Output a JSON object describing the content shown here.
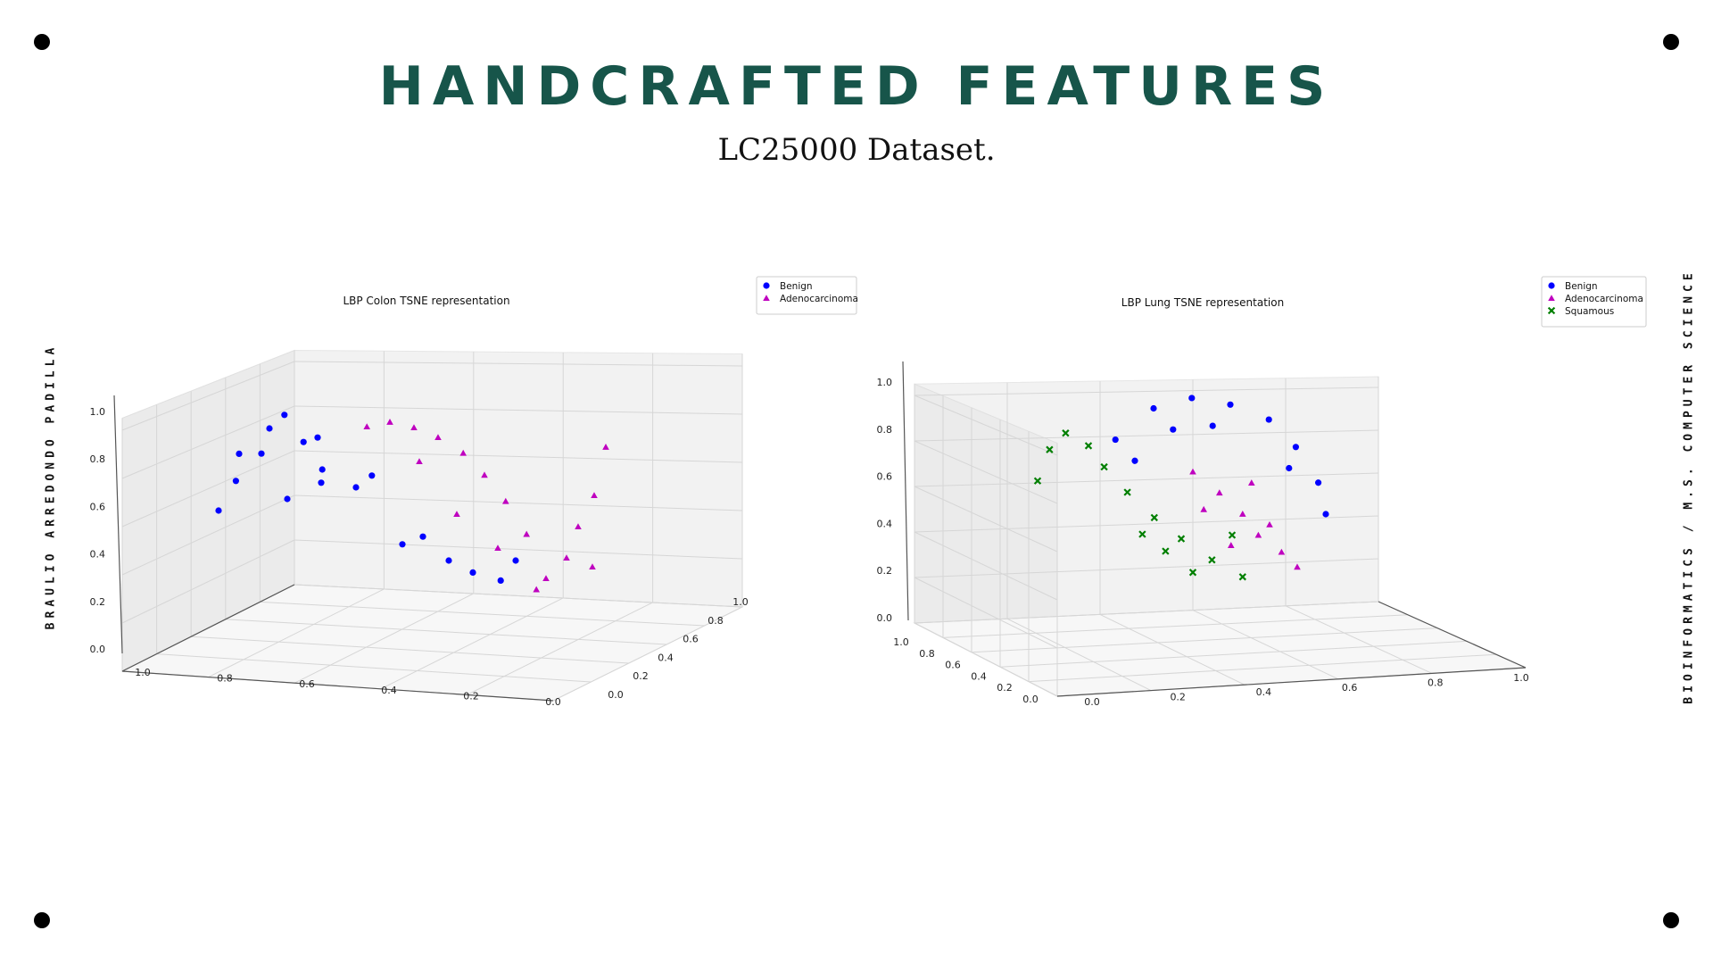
{
  "slide": {
    "title": "HANDCRAFTED FEATURES",
    "subtitle": "LC25000 Dataset.",
    "left_label": "BRAULIO ARREDONDO PADILLA",
    "right_label": "BIOINFORMATICS / M.S. COMPUTER SCIENCE"
  },
  "chart_data": [
    {
      "type": "scatter",
      "projection": "3d",
      "title": "LBP Colon TSNE representation",
      "x_ticks": [
        "0.0",
        "0.2",
        "0.4",
        "0.6",
        "0.8",
        "1.0"
      ],
      "y_ticks": [
        "0.0",
        "0.2",
        "0.4",
        "0.6",
        "0.8",
        "1.0"
      ],
      "z_ticks": [
        "0.0",
        "0.2",
        "0.4",
        "0.6",
        "0.8",
        "1.0"
      ],
      "xlim": [
        0,
        1
      ],
      "ylim": [
        0,
        1
      ],
      "zlim": [
        0,
        1
      ],
      "grid": true,
      "legend_position": "top-right",
      "series": [
        {
          "name": "Benign",
          "color": "#0000ff",
          "marker": "circle",
          "points": [
            [
              0.22,
              0.78,
              0.92
            ],
            [
              0.18,
              0.7,
              0.85
            ],
            [
              0.25,
              0.62,
              0.78
            ],
            [
              0.15,
              0.55,
              0.72
            ],
            [
              0.3,
              0.72,
              0.66
            ],
            [
              0.1,
              0.64,
              0.6
            ],
            [
              0.28,
              0.5,
              0.58
            ],
            [
              0.2,
              0.45,
              0.5
            ],
            [
              0.35,
              0.4,
              0.55
            ],
            [
              0.12,
              0.8,
              0.74
            ],
            [
              0.4,
              0.58,
              0.62
            ],
            [
              0.05,
              0.5,
              0.45
            ],
            [
              0.45,
              0.35,
              0.28
            ],
            [
              0.55,
              0.3,
              0.2
            ],
            [
              0.6,
              0.25,
              0.14
            ],
            [
              0.66,
              0.22,
              0.1
            ],
            [
              0.5,
              0.4,
              0.32
            ],
            [
              0.7,
              0.3,
              0.2
            ],
            [
              0.3,
              0.85,
              0.82
            ]
          ]
        },
        {
          "name": "Adenocarcinoma",
          "color": "#bf00bf",
          "marker": "triangle",
          "points": [
            [
              0.95,
              0.9,
              0.78
            ],
            [
              0.92,
              0.85,
              0.55
            ],
            [
              0.88,
              0.8,
              0.4
            ],
            [
              0.85,
              0.75,
              0.25
            ],
            [
              0.8,
              0.7,
              0.15
            ],
            [
              0.9,
              0.65,
              0.2
            ],
            [
              0.75,
              0.62,
              0.35
            ],
            [
              0.7,
              0.58,
              0.5
            ],
            [
              0.65,
              0.55,
              0.62
            ],
            [
              0.6,
              0.52,
              0.72
            ],
            [
              0.55,
              0.6,
              0.8
            ],
            [
              0.5,
              0.65,
              0.85
            ],
            [
              0.45,
              0.7,
              0.88
            ],
            [
              0.4,
              0.72,
              0.86
            ],
            [
              0.7,
              0.8,
              0.3
            ],
            [
              0.78,
              0.72,
              0.1
            ],
            [
              0.6,
              0.7,
              0.45
            ],
            [
              0.52,
              0.75,
              0.7
            ]
          ]
        }
      ]
    },
    {
      "type": "scatter",
      "projection": "3d",
      "title": "LBP Lung TSNE representation",
      "x_ticks": [
        "0.0",
        "0.2",
        "0.4",
        "0.6",
        "0.8",
        "1.0"
      ],
      "y_ticks": [
        "0.0",
        "0.2",
        "0.4",
        "0.6",
        "0.8",
        "1.0"
      ],
      "z_ticks": [
        "0.0",
        "0.2",
        "0.4",
        "0.6",
        "0.8",
        "1.0"
      ],
      "xlim": [
        0,
        1
      ],
      "ylim": [
        0,
        1
      ],
      "zlim": [
        0,
        1
      ],
      "grid": true,
      "legend_position": "top-right",
      "series": [
        {
          "name": "Benign",
          "color": "#0000ff",
          "marker": "circle",
          "points": [
            [
              0.35,
              0.4,
              0.9
            ],
            [
              0.45,
              0.42,
              0.95
            ],
            [
              0.55,
              0.45,
              0.92
            ],
            [
              0.65,
              0.48,
              0.85
            ],
            [
              0.72,
              0.5,
              0.72
            ],
            [
              0.78,
              0.5,
              0.55
            ],
            [
              0.8,
              0.5,
              0.4
            ],
            [
              0.25,
              0.38,
              0.75
            ],
            [
              0.3,
              0.4,
              0.65
            ],
            [
              0.5,
              0.48,
              0.82
            ],
            [
              0.7,
              0.52,
              0.62
            ],
            [
              0.4,
              0.42,
              0.8
            ]
          ]
        },
        {
          "name": "Adenocarcinoma",
          "color": "#bf00bf",
          "marker": "triangle",
          "points": [
            [
              0.45,
              0.45,
              0.6
            ],
            [
              0.52,
              0.46,
              0.5
            ],
            [
              0.58,
              0.48,
              0.4
            ],
            [
              0.62,
              0.5,
              0.3
            ],
            [
              0.68,
              0.52,
              0.22
            ],
            [
              0.72,
              0.54,
              0.15
            ],
            [
              0.55,
              0.47,
              0.25
            ],
            [
              0.65,
              0.5,
              0.35
            ],
            [
              0.48,
              0.44,
              0.42
            ],
            [
              0.6,
              0.52,
              0.55
            ]
          ]
        },
        {
          "name": "Squamous",
          "color": "#007f00",
          "marker": "x",
          "points": [
            [
              0.05,
              0.3,
              0.55
            ],
            [
              0.08,
              0.32,
              0.7
            ],
            [
              0.12,
              0.35,
              0.78
            ],
            [
              0.18,
              0.36,
              0.72
            ],
            [
              0.22,
              0.38,
              0.62
            ],
            [
              0.28,
              0.4,
              0.5
            ],
            [
              0.35,
              0.42,
              0.38
            ],
            [
              0.42,
              0.44,
              0.28
            ],
            [
              0.5,
              0.46,
              0.18
            ],
            [
              0.58,
              0.48,
              0.1
            ],
            [
              0.45,
              0.45,
              0.12
            ],
            [
              0.38,
              0.42,
              0.22
            ],
            [
              0.55,
              0.5,
              0.3
            ],
            [
              0.32,
              0.4,
              0.3
            ]
          ]
        }
      ]
    }
  ]
}
